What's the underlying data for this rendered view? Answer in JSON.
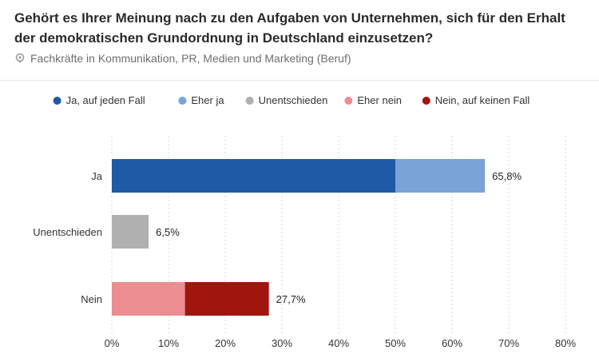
{
  "header": {
    "title": "Gehört es Ihrer Meinung nach zu den Aufgaben von Unternehmen, sich für den Erhalt der demokratischen Grundordnung in Deutschland einzusetzen?",
    "subtitle": "Fachkräfte in Kommunikation, PR, Medien und Marketing (Beruf)",
    "subtitle_icon": "filter-icon"
  },
  "chart_data": {
    "type": "bar",
    "orientation": "horizontal",
    "stacked": true,
    "categories": [
      "Ja",
      "Unentschieden",
      "Nein"
    ],
    "series": [
      {
        "name": "Ja, auf jeden Fall",
        "color": "#1f5aa6",
        "values": [
          50.0,
          0,
          0
        ]
      },
      {
        "name": "Eher ja",
        "color": "#7aa3d8",
        "values": [
          15.8,
          0,
          0
        ]
      },
      {
        "name": "Unentschieden",
        "color": "#b0b0b0",
        "values": [
          0,
          6.5,
          0
        ]
      },
      {
        "name": "Eher nein",
        "color": "#ec8d91",
        "values": [
          0,
          0,
          12.9
        ]
      },
      {
        "name": "Nein, auf keinen Fall",
        "color": "#a0160f",
        "values": [
          0,
          0,
          14.8
        ]
      }
    ],
    "totals": [
      "65,8%",
      "6,5%",
      "27,7%"
    ],
    "x_ticks": [
      "0%",
      "10%",
      "20%",
      "30%",
      "40%",
      "50%",
      "60%",
      "70%",
      "80%"
    ],
    "xlim": [
      0,
      80
    ],
    "grid": true,
    "legend_position": "top"
  }
}
